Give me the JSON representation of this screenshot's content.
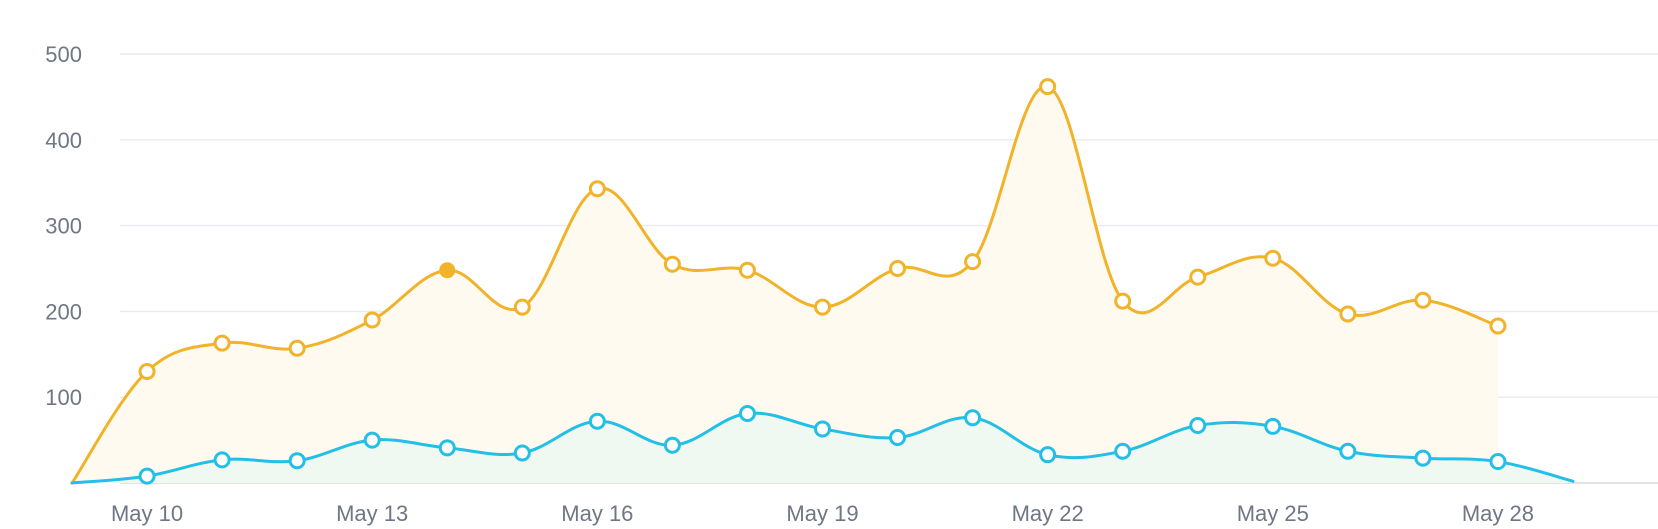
{
  "chart_data": {
    "type": "area",
    "grid": true,
    "ylim": [
      0,
      500
    ],
    "y_ticks": [
      100,
      200,
      300,
      400,
      500
    ],
    "y_tick_labels": [
      "100",
      "200",
      "300",
      "400",
      "500"
    ],
    "x_start": "May 9",
    "x_tick_labels": [
      {
        "date": "May 10",
        "label": "May 10"
      },
      {
        "date": "May 13",
        "label": "May 13"
      },
      {
        "date": "May 16",
        "label": "May 16"
      },
      {
        "date": "May 19",
        "label": "May 19"
      },
      {
        "date": "May 22",
        "label": "May 22"
      },
      {
        "date": "May 25",
        "label": "May 25"
      },
      {
        "date": "May 28",
        "label": "May 28"
      }
    ],
    "series": [
      {
        "color": "#f0b32a",
        "fill": "#fffaf0",
        "points": [
          {
            "x": "May 9",
            "y": 0
          },
          {
            "x": "May 10",
            "y": 130
          },
          {
            "x": "May 11",
            "y": 163
          },
          {
            "x": "May 12",
            "y": 157
          },
          {
            "x": "May 13",
            "y": 190
          },
          {
            "x": "May 14",
            "y": 248,
            "highlighted": true
          },
          {
            "x": "May 15",
            "y": 205
          },
          {
            "x": "May 16",
            "y": 343
          },
          {
            "x": "May 17",
            "y": 255
          },
          {
            "x": "May 18",
            "y": 248
          },
          {
            "x": "May 19",
            "y": 205
          },
          {
            "x": "May 20",
            "y": 250
          },
          {
            "x": "May 21",
            "y": 258
          },
          {
            "x": "May 22",
            "y": 462
          },
          {
            "x": "May 23",
            "y": 212
          },
          {
            "x": "May 24",
            "y": 240
          },
          {
            "x": "May 25",
            "y": 262
          },
          {
            "x": "May 26",
            "y": 197
          },
          {
            "x": "May 27",
            "y": 213
          },
          {
            "x": "May 28",
            "y": 183
          }
        ]
      },
      {
        "color": "#24bfe6",
        "fill": "#eff9f1",
        "points": [
          {
            "x": "May 9",
            "y": 0
          },
          {
            "x": "May 10",
            "y": 8
          },
          {
            "x": "May 11",
            "y": 27
          },
          {
            "x": "May 12",
            "y": 26
          },
          {
            "x": "May 13",
            "y": 50
          },
          {
            "x": "May 14",
            "y": 41
          },
          {
            "x": "May 15",
            "y": 35
          },
          {
            "x": "May 16",
            "y": 72
          },
          {
            "x": "May 17",
            "y": 44
          },
          {
            "x": "May 18",
            "y": 81
          },
          {
            "x": "May 19",
            "y": 63
          },
          {
            "x": "May 20",
            "y": 53
          },
          {
            "x": "May 21",
            "y": 76
          },
          {
            "x": "May 22",
            "y": 33
          },
          {
            "x": "May 23",
            "y": 37
          },
          {
            "x": "May 24",
            "y": 67
          },
          {
            "x": "May 25",
            "y": 66
          },
          {
            "x": "May 26",
            "y": 37
          },
          {
            "x": "May 27",
            "y": 29
          },
          {
            "x": "May 28",
            "y": 25
          },
          {
            "x": "May 29",
            "y": 2
          }
        ]
      }
    ]
  }
}
